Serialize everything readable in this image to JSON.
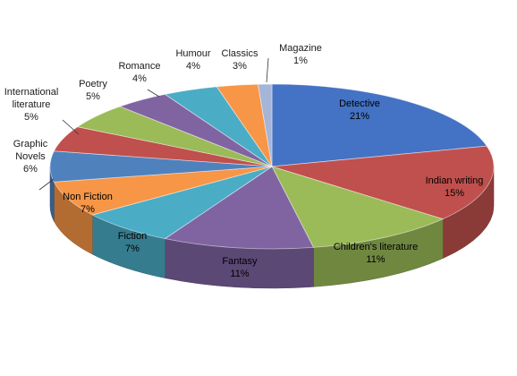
{
  "chart_data": {
    "type": "pie",
    "title": "",
    "style": "3d",
    "legend": "none",
    "slices": [
      {
        "label": "Detective",
        "value": 21,
        "value_label": "21%",
        "color": "#4472C4"
      },
      {
        "label": "Indian writing",
        "value": 15,
        "value_label": "15%",
        "color": "#C0504D"
      },
      {
        "label": "Children's literature",
        "value": 11,
        "value_label": "11%",
        "color": "#9BBB59"
      },
      {
        "label": "Fantasy",
        "value": 11,
        "value_label": "11%",
        "color": "#8064A2"
      },
      {
        "label": "Fiction",
        "value": 7,
        "value_label": "7%",
        "color": "#4BACC6"
      },
      {
        "label": "Non Fiction",
        "value": 7,
        "value_label": "7%",
        "color": "#F79646"
      },
      {
        "label": "Graphic Novels",
        "value": 6,
        "value_label": "6%",
        "color": "#4F81BD"
      },
      {
        "label": "International literature",
        "value": 5,
        "value_label": "5%",
        "color": "#C0504D"
      },
      {
        "label": "Poetry",
        "value": 5,
        "value_label": "5%",
        "color": "#9BBB59"
      },
      {
        "label": "Romance",
        "value": 4,
        "value_label": "4%",
        "color": "#8064A2"
      },
      {
        "label": "Humour",
        "value": 4,
        "value_label": "4%",
        "color": "#4BACC6"
      },
      {
        "label": "Classics",
        "value": 3,
        "value_label": "3%",
        "color": "#F79646"
      },
      {
        "label": "Magazine",
        "value": 1,
        "value_label": "1%",
        "color": "#A5B5D8"
      }
    ]
  }
}
